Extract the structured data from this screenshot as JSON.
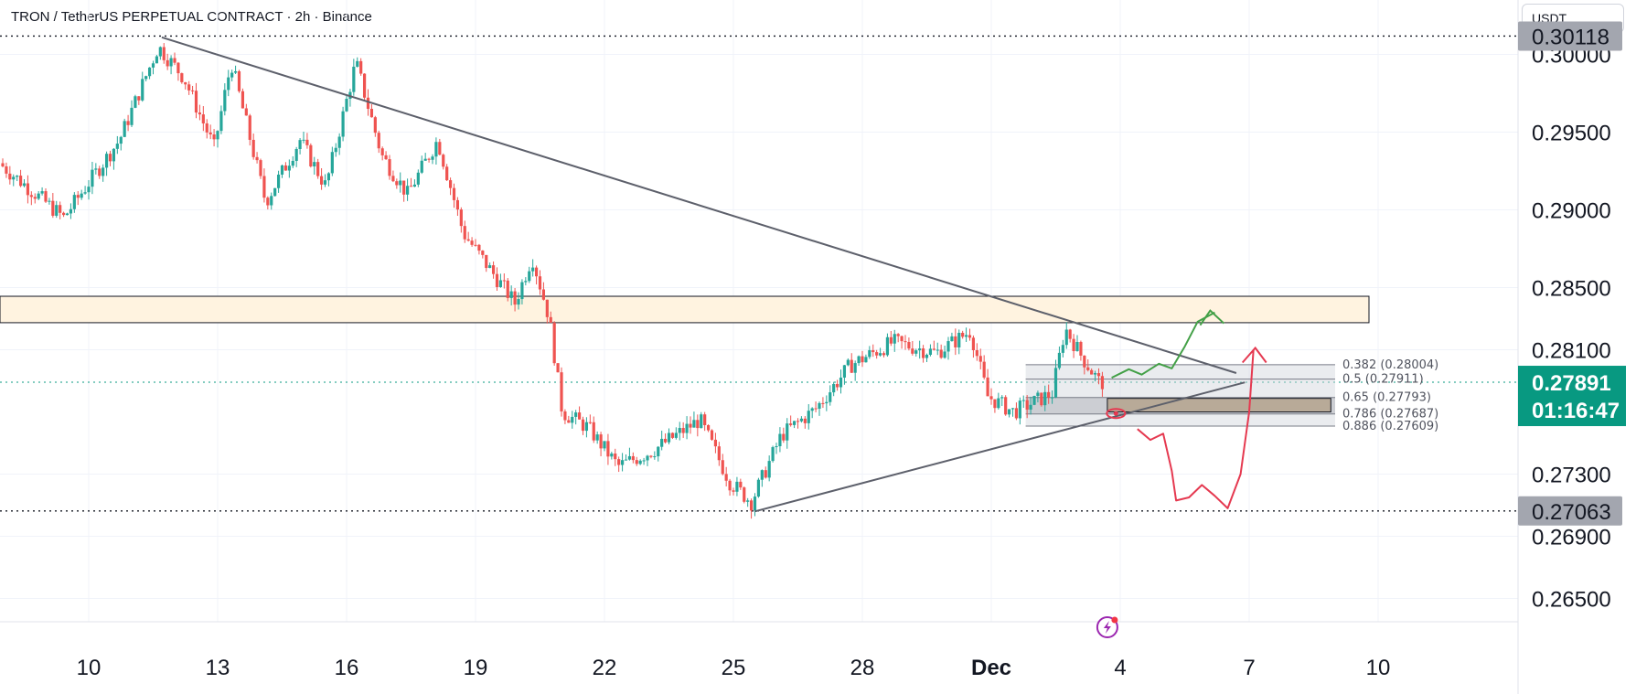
{
  "header": {
    "title": "TRON / TetherUS PERPETUAL CONTRACT · 2h · Binance",
    "currency": "USDT"
  },
  "colors": {
    "up": "#26a69a",
    "down": "#ef5350",
    "trendline": "#5d606b",
    "zone_fill": "#fff3e0",
    "green_path": "#43a047",
    "red_path": "#e53950",
    "last_price_bg": "#089981",
    "level_bg": "#a3a6af"
  },
  "chart_data": {
    "type": "candlestick",
    "title": "TRON / TetherUS PERPETUAL CONTRACT · 2h · Binance",
    "ylim": [
      0.2635,
      0.3035
    ],
    "y_ticks": [
      "0.30000",
      "0.29500",
      "0.29000",
      "0.28500",
      "0.28100",
      "0.27300",
      "0.26900",
      "0.26500"
    ],
    "x_ticks": [
      "10",
      "13",
      "16",
      "19",
      "22",
      "25",
      "28",
      "Dec",
      "4",
      "7",
      "10"
    ],
    "price_labels": {
      "high_level": "0.30118",
      "current_price": "0.27891",
      "countdown": "01:16:47",
      "low_level": "0.27063"
    },
    "horizontal_levels": [
      0.30118,
      0.27891,
      0.27063
    ],
    "resistance_zone": [
      0.28274,
      0.28444
    ],
    "fib_levels": [
      {
        "ratio": "0.382",
        "value": "0.28004",
        "label": "0.382 (0.28004)"
      },
      {
        "ratio": "0.5",
        "value": "0.27911",
        "label": "0.5 (0.27911)"
      },
      {
        "ratio": "0.65",
        "value": "0.27793",
        "label": "0.65 (0.27793)"
      },
      {
        "ratio": "0.786",
        "value": "0.27687",
        "label": "0.786 (0.27687)"
      },
      {
        "ratio": "0.886",
        "value": "0.27609",
        "label": "0.886 (0.27609)"
      }
    ],
    "trendlines": [
      {
        "name": "descending",
        "from": [
          "Nov 11.7",
          0.3011
        ],
        "to": [
          "Dec 6.7",
          0.2795
        ]
      },
      {
        "name": "ascending",
        "from": [
          "Nov 25.5",
          0.2706
        ],
        "to": [
          "Dec 6.9",
          0.2789
        ]
      }
    ],
    "price_path_anchors": [
      [
        "Nov 8",
        0.293
      ],
      [
        "Nov 9.5",
        0.2895
      ],
      [
        "Nov 10.8",
        0.2945
      ],
      [
        "Nov 11.7",
        0.3005
      ],
      [
        "Nov 12.3",
        0.2985
      ],
      [
        "Nov 13",
        0.294
      ],
      [
        "Nov 13.4",
        0.2995
      ],
      [
        "Nov 14.2",
        0.2905
      ],
      [
        "Nov 15",
        0.2945
      ],
      [
        "Nov 15.6",
        0.2915
      ],
      [
        "Nov 16.3",
        0.2995
      ],
      [
        "Nov 16.9",
        0.2935
      ],
      [
        "Nov 17.5",
        0.291
      ],
      [
        "Nov 18.2",
        0.2945
      ],
      [
        "Nov 18.8",
        0.2885
      ],
      [
        "Nov 19.6",
        0.2855
      ],
      [
        "Nov 20.0",
        0.284
      ],
      [
        "Nov 20.4",
        0.287
      ],
      [
        "Nov 20.8",
        0.283
      ],
      [
        "Nov 21.1",
        0.277
      ],
      [
        "Nov 21.7",
        0.276
      ],
      [
        "Nov 22.4",
        0.2735
      ],
      [
        "Nov 23.2",
        0.2745
      ],
      [
        "Nov 24.3",
        0.2765
      ],
      [
        "Nov 25.0",
        0.2725
      ],
      [
        "Nov 25.5",
        0.2712
      ],
      [
        "Nov 26.2",
        0.2755
      ],
      [
        "Nov 27.0",
        0.2772
      ],
      [
        "Nov 27.8",
        0.28
      ],
      [
        "Nov 28.8",
        0.2815
      ],
      [
        "Nov 29.8",
        0.2808
      ],
      [
        "Nov 30.6",
        0.2822
      ],
      [
        "Dec 1.0",
        0.278
      ],
      [
        "Dec 1.6",
        0.277
      ],
      [
        "Dec 2.5",
        0.2782
      ],
      [
        "Dec 2.8",
        0.2824
      ],
      [
        "Dec 3.2",
        0.2805
      ],
      [
        "Dec 3.6",
        0.2789
      ]
    ]
  }
}
